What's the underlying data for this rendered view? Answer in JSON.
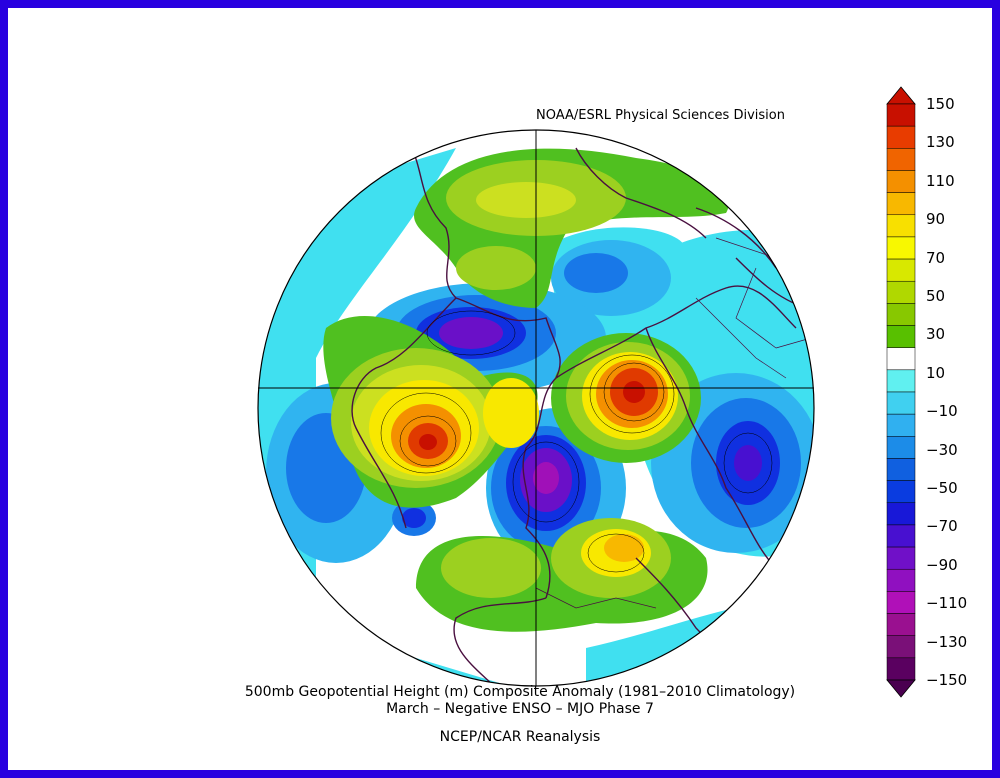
{
  "credit": "NOAA/ESRL Physical Sciences Division",
  "title_line1": "500mb Geopotential Height (m) Composite Anomaly (1981–2010 Climatology)",
  "title_line2": "March – Negative ENSO – MJO Phase 7",
  "title_line3": "NCEP/NCAR Reanalysis",
  "colorbar": {
    "labels": [
      "150",
      "130",
      "110",
      "90",
      "70",
      "50",
      "30",
      "10",
      "−10",
      "−30",
      "−50",
      "−70",
      "−90",
      "−110",
      "−130",
      "−150"
    ],
    "colors": [
      "#c81000",
      "#e83c00",
      "#f06400",
      "#f49000",
      "#f8b800",
      "#f8e000",
      "#f8f800",
      "#d8e800",
      "#b0d800",
      "#88c800",
      "#58c000",
      "#ffffff",
      "#60f0f0",
      "#40d0f0",
      "#30b0f0",
      "#1c8ce8",
      "#1060e0",
      "#0a3ce0",
      "#1818d8",
      "#4810d0",
      "#7010c8",
      "#9010c0",
      "#b010b8",
      "#9a1090",
      "#7a1078",
      "#5a0060"
    ],
    "top_arrow_color": "#c81000",
    "bottom_arrow_color": "#4a0050"
  },
  "map_colors": {
    "white": "#ffffff",
    "cyan": "#40e0f0",
    "lightblue": "#30b4f0",
    "blue": "#1878e8",
    "darkblue": "#1030e0",
    "purple": "#6a10c8",
    "magenta": "#a010b8",
    "green": "#50c020",
    "lightgreen": "#9cd020",
    "yellowgreen": "#cce020",
    "yellow": "#f8e800",
    "orange": "#f49000",
    "red": "#e03a00",
    "darkred": "#c81000",
    "coast": "#4a1040"
  }
}
